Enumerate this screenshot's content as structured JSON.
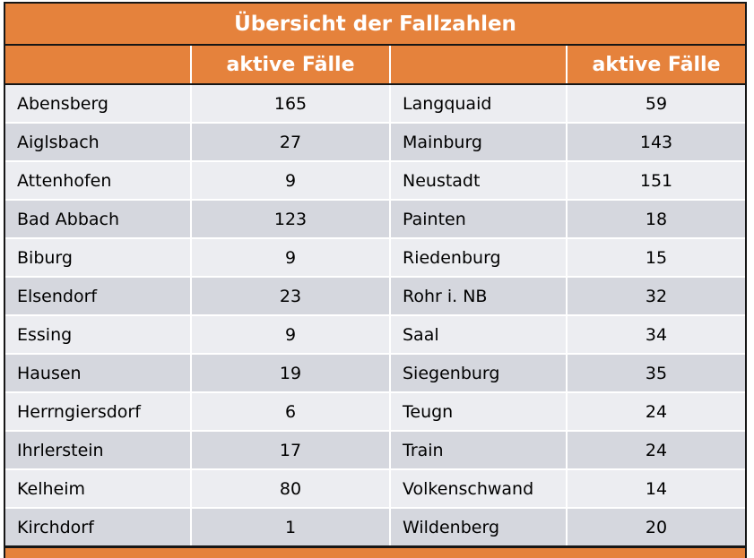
{
  "title": "Übersicht der Fallzahlen",
  "header": {
    "col1": "",
    "col2": "aktive Fälle",
    "col3": "",
    "col4": "aktive Fälle"
  },
  "colors": {
    "accent_orange": "#E5823C",
    "row_light": "#ECEDF1",
    "row_dark": "#D5D7DE",
    "border_black": "#161616",
    "header_text": "#FFFFFF",
    "cell_text": "#000000"
  },
  "chart_data": {
    "type": "table",
    "title": "Übersicht der Fallzahlen",
    "columns": [
      "",
      "aktive Fälle",
      "",
      "aktive Fälle"
    ],
    "rows": [
      [
        "Abensberg",
        165,
        "Langquaid",
        59
      ],
      [
        "Aiglsbach",
        27,
        "Mainburg",
        143
      ],
      [
        "Attenhofen",
        9,
        "Neustadt",
        151
      ],
      [
        "Bad Abbach",
        123,
        "Painten",
        18
      ],
      [
        "Biburg",
        9,
        "Riedenburg",
        15
      ],
      [
        "Elsendorf",
        23,
        "Rohr i. NB",
        32
      ],
      [
        "Essing",
        9,
        "Saal",
        34
      ],
      [
        "Hausen",
        19,
        "Siegenburg",
        35
      ],
      [
        "Herrngiersdorf",
        6,
        "Teugn",
        24
      ],
      [
        "Ihrlerstein",
        17,
        "Train",
        24
      ],
      [
        "Kelheim",
        80,
        "Volkenschwand",
        14
      ],
      [
        "Kirchdorf",
        1,
        "Wildenberg",
        20
      ]
    ]
  }
}
